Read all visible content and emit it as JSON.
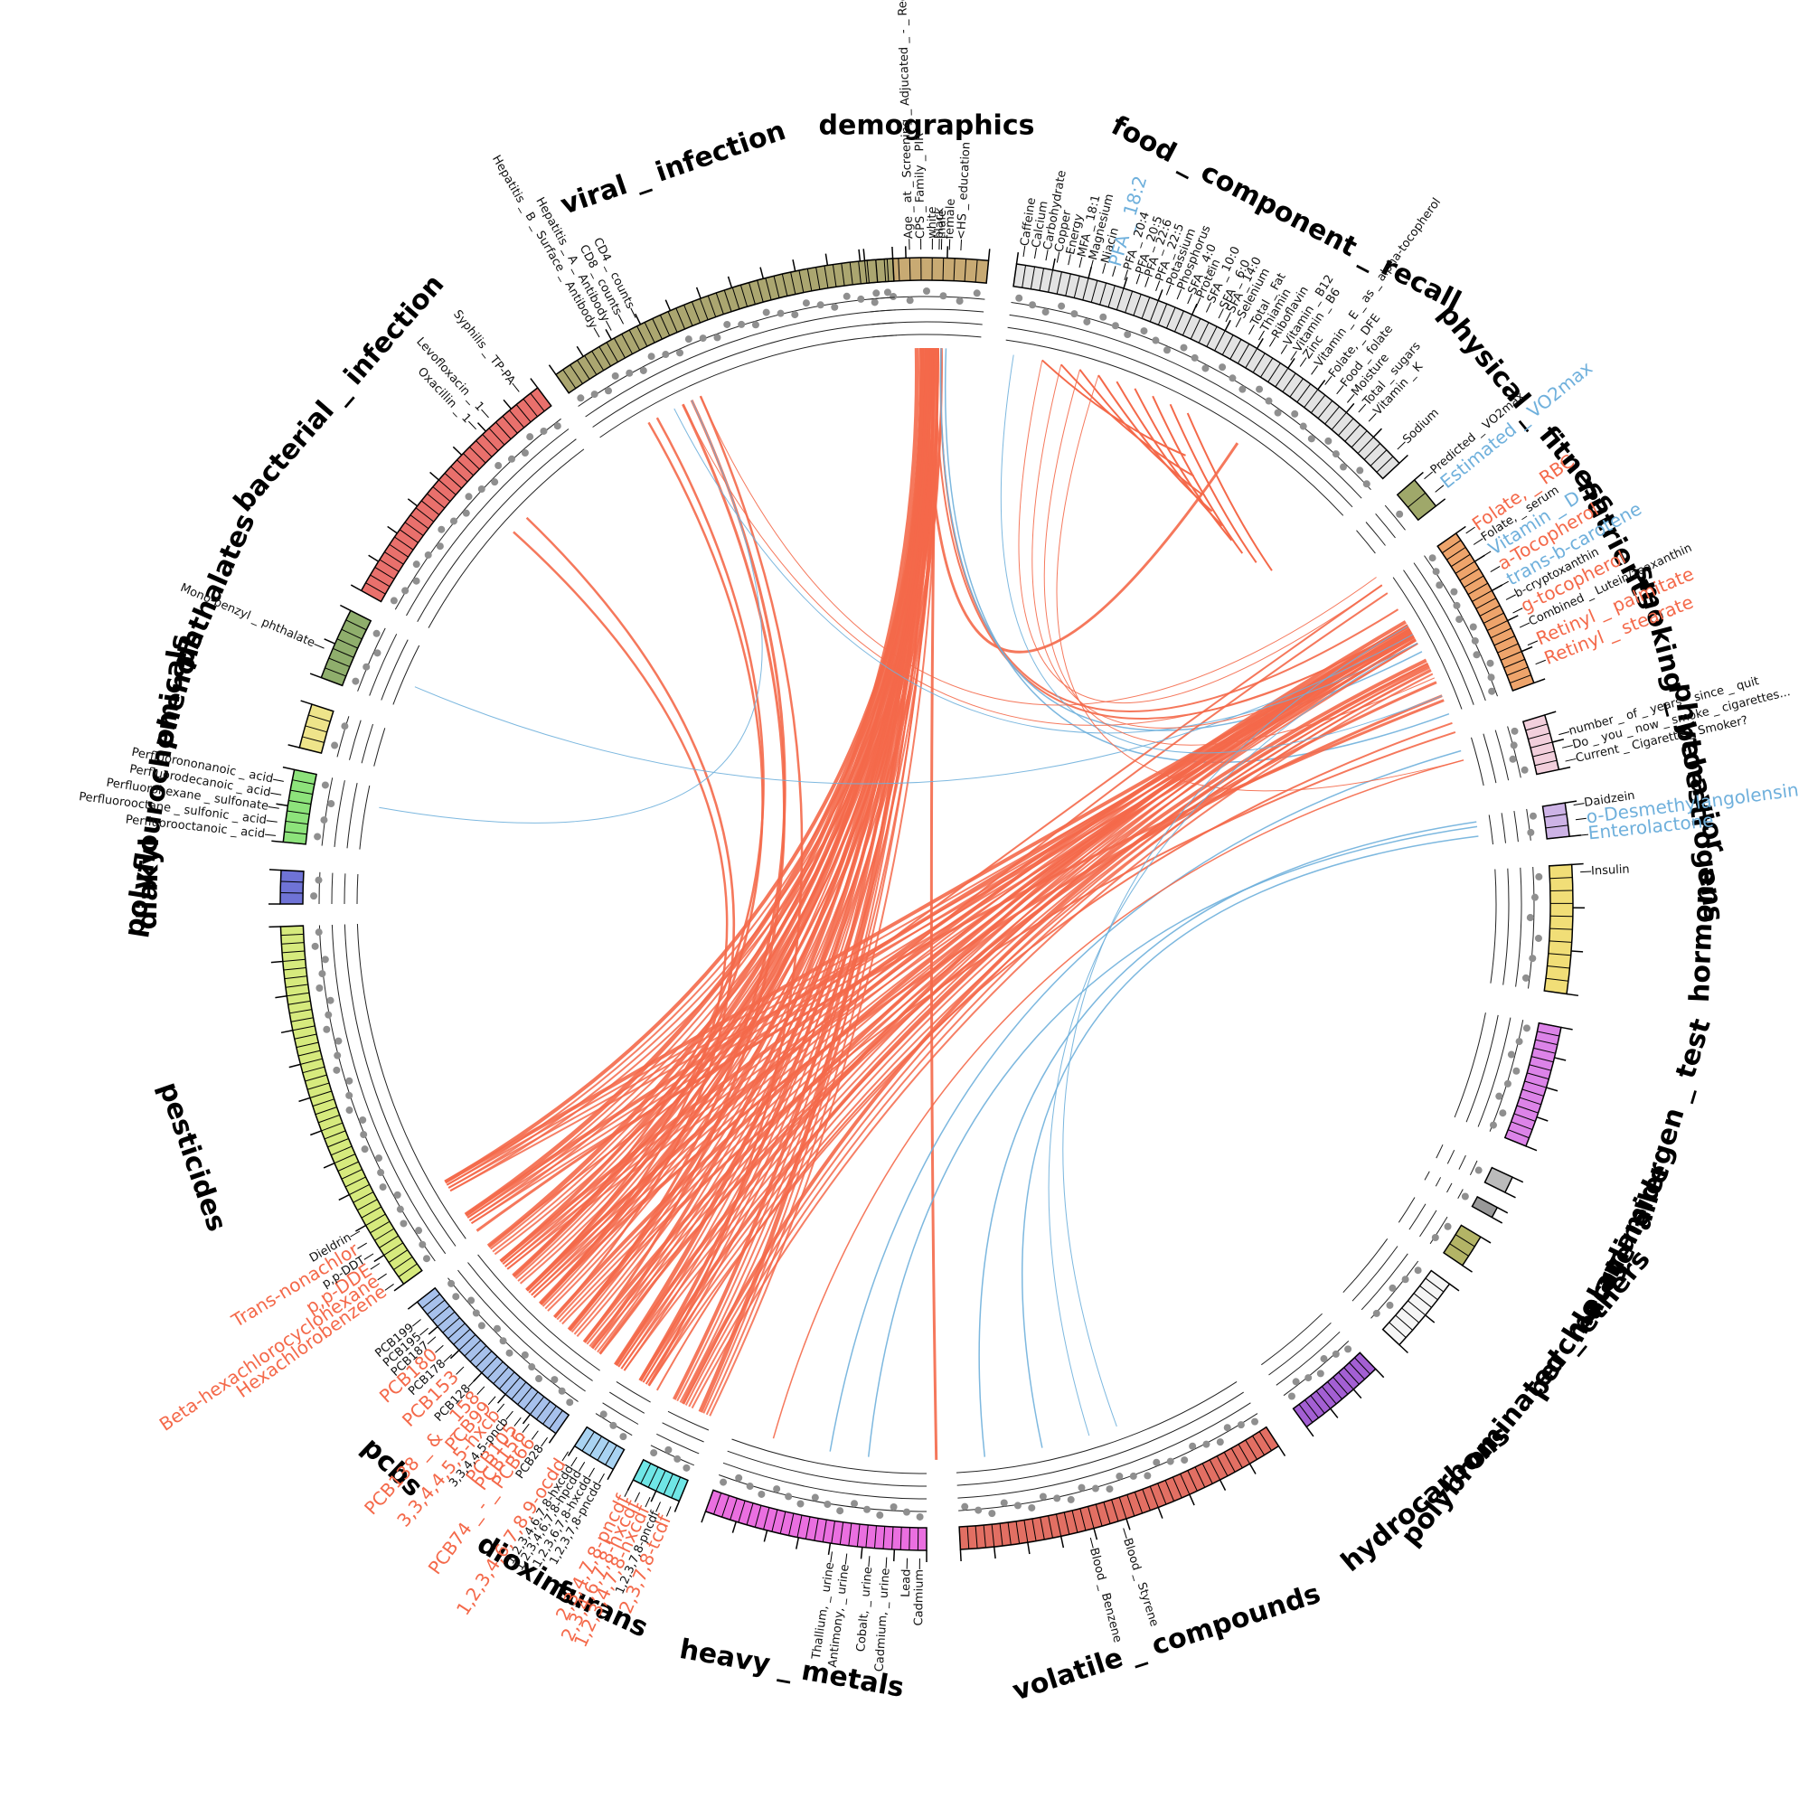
{
  "colors": {
    "positive": "#f4694a",
    "negative": "#6fb0dc",
    "point": "#8f8f8f",
    "text_black": "#111111"
  },
  "categories": [
    {
      "name": "demographics",
      "color": "#c8aa73",
      "start": -5.5,
      "end": 5.5,
      "ticks": 11
    },
    {
      "name": "food _ component _ recall",
      "color": "#e3e3e3",
      "start": 8,
      "end": 47,
      "ticks": 48
    },
    {
      "name": "physical _ fitness",
      "color": "#9fa86a",
      "start": 49,
      "end": 52,
      "ticks": 2
    },
    {
      "name": "nutrients",
      "color": "#eea46b",
      "start": 55,
      "end": 70,
      "ticks": 20
    },
    {
      "name": "smoking _ behavior",
      "color": "#f2cfdc",
      "start": 73,
      "end": 78,
      "ticks": 6
    },
    {
      "name": "phytoestrogens",
      "color": "#cdb3e6",
      "start": 81,
      "end": 84,
      "ticks": 3
    },
    {
      "name": "hormone",
      "color": "#f1de77",
      "start": 86.5,
      "end": 98,
      "ticks": 10
    },
    {
      "name": "allergen _ test",
      "color": "#dc83e8",
      "start": 101,
      "end": 112,
      "ticks": 14
    },
    {
      "name": "acrylamide",
      "color": "#bbbbbb",
      "start": 115,
      "end": 116.5,
      "ticks": 1
    },
    {
      "name": "melamine",
      "color": "#999999",
      "start": 118,
      "end": 119,
      "ticks": 1
    },
    {
      "name": "perchlorate",
      "color": "#b3b466",
      "start": 121,
      "end": 124,
      "ticks": 3
    },
    {
      "name": "polybrominated _ ethers",
      "color": "#f5f5f5",
      "start": 126,
      "end": 133,
      "ticks": 8
    },
    {
      "name": "hydrocarbons",
      "color": "#a35fd3",
      "start": 136,
      "end": 144,
      "ticks": 12
    },
    {
      "name": "volatile _ compounds",
      "color": "#e26f63",
      "start": 147,
      "end": 177,
      "ticks": 40
    },
    {
      "name": "heavy _ metals",
      "color": "#ea6fe0",
      "start": 180,
      "end": 200,
      "ticks": 26
    },
    {
      "name": "furans",
      "color": "#6fe6e6",
      "start": 202.5,
      "end": 207,
      "ticks": 6
    },
    {
      "name": "dioxins",
      "color": "#a9d3f2",
      "start": 209,
      "end": 213,
      "ticks": 5
    },
    {
      "name": "pcbs",
      "color": "#a7c1ec",
      "start": 215,
      "end": 232,
      "ticks": 24
    },
    {
      "name": "pesticides",
      "color": "#d6ea7d",
      "start": 234,
      "end": 268,
      "ticks": 44
    },
    {
      "name": "diakyl",
      "color": "#6f73d6",
      "start": 270,
      "end": 273,
      "ticks": 3
    },
    {
      "name": "polyflourochemicals",
      "color": "#8de37b",
      "start": 275.5,
      "end": 282,
      "ticks": 7
    },
    {
      "name": "phenols",
      "color": "#eee48a",
      "start": 284,
      "end": 288,
      "ticks": 4
    },
    {
      "name": "phthalates",
      "color": "#8fae6c",
      "start": 290.5,
      "end": 297,
      "ticks": 7
    },
    {
      "name": "bacterial _ infection",
      "color": "#e9706c",
      "start": 299,
      "end": 323,
      "ticks": 30
    },
    {
      "name": "viral _ infection",
      "color": "#aba670",
      "start": 325,
      "end": 357,
      "ticks": 42
    }
  ],
  "variable_labels": [
    {
      "text": "Age _ at _ Screening _ Adjucated _ - _ Recode",
      "angle": -1.5,
      "tone": "plain"
    },
    {
      "text": "CPS _ Family _ PIR",
      "angle": -0.5,
      "tone": "plain"
    },
    {
      "text": "white",
      "angle": 0.5,
      "tone": "plain"
    },
    {
      "text": "male",
      "angle": 1.3,
      "tone": "plain"
    },
    {
      "text": "black",
      "angle": 1.1,
      "tone": "plain"
    },
    {
      "text": "female",
      "angle": 2.0,
      "tone": "plain"
    },
    {
      "text": "<HS _ education",
      "angle": 3.0,
      "tone": "plain"
    },
    {
      "text": "Caffeine",
      "angle": 8.5,
      "tone": "plain"
    },
    {
      "text": "Calcium",
      "angle": 9.5,
      "tone": "plain"
    },
    {
      "text": "Carbohydrate",
      "angle": 10.5,
      "tone": "plain"
    },
    {
      "text": "Copper",
      "angle": 11.5,
      "tone": "plain"
    },
    {
      "text": "Energy",
      "angle": 12.5,
      "tone": "plain"
    },
    {
      "text": "MFA _ 18:1",
      "angle": 13.5,
      "tone": "plain"
    },
    {
      "text": "Magnesium",
      "angle": 14.5,
      "tone": "plain"
    },
    {
      "text": "Niacin",
      "angle": 15.6,
      "tone": "plain"
    },
    {
      "text": "PFA _ 18:2",
      "angle": 16.5,
      "tone": "neg-big"
    },
    {
      "text": "PFA _ 20:4",
      "angle": 17.6,
      "tone": "plain"
    },
    {
      "text": "PFA _ 20:5",
      "angle": 18.7,
      "tone": "plain"
    },
    {
      "text": "PFA _ 22:6",
      "angle": 19.5,
      "tone": "plain"
    },
    {
      "text": "PFA _ 22:5",
      "angle": 20.5,
      "tone": "plain"
    },
    {
      "text": "Potassium",
      "angle": 21.5,
      "tone": "plain"
    },
    {
      "text": "Phosphorus",
      "angle": 22.5,
      "tone": "plain"
    },
    {
      "text": "SFA _ 4:0",
      "angle": 23.5,
      "tone": "plain"
    },
    {
      "text": "Protein",
      "angle": 24.3,
      "tone": "plain"
    },
    {
      "text": "SFA _ 10:0",
      "angle": 25.3,
      "tone": "plain"
    },
    {
      "text": "SFA _ 6:0",
      "angle": 26.5,
      "tone": "plain"
    },
    {
      "text": "SFA _ 14:0",
      "angle": 27.2,
      "tone": "plain"
    },
    {
      "text": "Selenium",
      "angle": 28.2,
      "tone": "plain"
    },
    {
      "text": "Total _ Fat",
      "angle": 29.5,
      "tone": "plain"
    },
    {
      "text": "Thiamin",
      "angle": 30.5,
      "tone": "plain"
    },
    {
      "text": "Riboflavin",
      "angle": 31.6,
      "tone": "plain"
    },
    {
      "text": "Vitamin _ B12",
      "angle": 32.8,
      "tone": "plain"
    },
    {
      "text": "Vitamin _ B6",
      "angle": 33.8,
      "tone": "plain"
    },
    {
      "text": "Zinc",
      "angle": 34.8,
      "tone": "plain"
    },
    {
      "text": "Vitamin _ E _ as _ alpha-tocopherol",
      "angle": 36,
      "tone": "plain"
    },
    {
      "text": "Folate, _ DFE",
      "angle": 37.5,
      "tone": "plain"
    },
    {
      "text": "Food _ folate",
      "angle": 38.8,
      "tone": "plain"
    },
    {
      "text": "Moisture",
      "angle": 40,
      "tone": "plain"
    },
    {
      "text": "Total _ sugars",
      "angle": 41.3,
      "tone": "plain"
    },
    {
      "text": "Vitamin _ K",
      "angle": 42.5,
      "tone": "plain"
    },
    {
      "text": "Sodium",
      "angle": 46,
      "tone": "plain"
    },
    {
      "text": "Predicted _ VO2max",
      "angle": 49.5,
      "tone": "plain"
    },
    {
      "text": "Estimated _ VO2max",
      "angle": 51,
      "tone": "neg-big"
    },
    {
      "text": "Folate, _ RBC",
      "angle": 55.5,
      "tone": "pos-big"
    },
    {
      "text": "Folate, _ serum",
      "angle": 56.7,
      "tone": "plain"
    },
    {
      "text": "Vitamin _ D",
      "angle": 58,
      "tone": "neg-big"
    },
    {
      "text": "a-Tocopherol",
      "angle": 59.5,
      "tone": "pos-big"
    },
    {
      "text": "trans-b-carotene",
      "angle": 61,
      "tone": "neg-big"
    },
    {
      "text": "b-cryptoxanthin",
      "angle": 62.3,
      "tone": "plain"
    },
    {
      "text": "g-tocopherol",
      "angle": 63.6,
      "tone": "pos-big"
    },
    {
      "text": "Combined _ Lutein/zeaxanthin",
      "angle": 65,
      "tone": "plain"
    },
    {
      "text": "Retinyl _ palmitate",
      "angle": 66.7,
      "tone": "pos-big"
    },
    {
      "text": "Retinyl _ stearate",
      "angle": 68.5,
      "tone": "pos-big"
    },
    {
      "text": "number _ of _ years _ since _ quit",
      "angle": 75,
      "tone": "plain"
    },
    {
      "text": "Do _ you _ now _ smoke _ cigarettes...",
      "angle": 76.2,
      "tone": "plain"
    },
    {
      "text": "Current _ Cigarette _ Smoker?",
      "angle": 77.4,
      "tone": "plain"
    },
    {
      "text": "Daidzein",
      "angle": 81.3,
      "tone": "plain"
    },
    {
      "text": "o-Desmethylangolensin",
      "angle": 82.6,
      "tone": "neg-big"
    },
    {
      "text": "Enterolactone",
      "angle": 84.0,
      "tone": "neg-big"
    },
    {
      "text": "Insulin",
      "angle": 87.2,
      "tone": "plain"
    },
    {
      "text": "Blood _ Styrene",
      "angle": 162.5,
      "tone": "plain"
    },
    {
      "text": "Blood _ Benzene",
      "angle": 165.5,
      "tone": "plain"
    },
    {
      "text": "Cadmium",
      "angle": 180.6,
      "tone": "plain"
    },
    {
      "text": "Lead",
      "angle": 181.7,
      "tone": "plain"
    },
    {
      "text": "Cadmium, _ urine",
      "angle": 183.5,
      "tone": "plain"
    },
    {
      "text": "Cobalt, _ urine",
      "angle": 185,
      "tone": "plain"
    },
    {
      "text": "Antimony, _ urine",
      "angle": 187,
      "tone": "plain"
    },
    {
      "text": "Thallium, _ urine",
      "angle": 188.3,
      "tone": "plain"
    },
    {
      "text": "2,3,7,8-tcdf",
      "angle": 203,
      "tone": "pos-big"
    },
    {
      "text": "1,2,3,7,8-pncdf",
      "angle": 204,
      "tone": "plain"
    },
    {
      "text": "1,2,3,4,7,8-hxcdf",
      "angle": 205,
      "tone": "pos-big"
    },
    {
      "text": "2,3,4,6,7,8-hxcdf",
      "angle": 206,
      "tone": "pos-big"
    },
    {
      "text": "2,3,4,7,8-pncdf",
      "angle": 207,
      "tone": "pos-big"
    },
    {
      "text": "1,2,3,7,8-pncdd",
      "angle": 209.5,
      "tone": "plain"
    },
    {
      "text": "1,2,3,6,7,8-hxcdd",
      "angle": 210.5,
      "tone": "plain"
    },
    {
      "text": "1,2,3,4,6,7,8-hpcdd",
      "angle": 211.5,
      "tone": "plain"
    },
    {
      "text": "1,2,3,4,6,7,8-hxcdd",
      "angle": 212.3,
      "tone": "plain"
    },
    {
      "text": "1,2,3,4,6,7,8,9-ocdd",
      "angle": 213.2,
      "tone": "pos-big"
    },
    {
      "text": "PCB28",
      "angle": 215.4,
      "tone": "plain"
    },
    {
      "text": "PCB74 _ - _ PCB66",
      "angle": 216.4,
      "tone": "pos-big"
    },
    {
      "text": "PCB156",
      "angle": 217.4,
      "tone": "pos-big"
    },
    {
      "text": "PCB105",
      "angle": 218.3,
      "tone": "pos-big"
    },
    {
      "text": "3,3,4,4,5-pncb",
      "angle": 219.2,
      "tone": "plain"
    },
    {
      "text": "3,3,4,4,5,5-hxcb",
      "angle": 220.2,
      "tone": "pos-big"
    },
    {
      "text": "PCB99",
      "angle": 221.2,
      "tone": "pos-big"
    },
    {
      "text": "PCB138 _ & _ 158",
      "angle": 222.5,
      "tone": "pos-big"
    },
    {
      "text": "PCB128",
      "angle": 223.5,
      "tone": "plain"
    },
    {
      "text": "PCB153",
      "angle": 225,
      "tone": "pos-big"
    },
    {
      "text": "PCB178",
      "angle": 226.5,
      "tone": "plain"
    },
    {
      "text": "PCB180",
      "angle": 227.6,
      "tone": "pos-big"
    },
    {
      "text": "PCB187",
      "angle": 228.6,
      "tone": "plain"
    },
    {
      "text": "PCB195",
      "angle": 229.6,
      "tone": "plain"
    },
    {
      "text": "PCB199",
      "angle": 230.6,
      "tone": "plain"
    },
    {
      "text": "Hexachlorobenzene",
      "angle": 234.5,
      "tone": "pos-big"
    },
    {
      "text": "Beta-hexachlorocyclohexane",
      "angle": 235.6,
      "tone": "pos-big"
    },
    {
      "text": "p,p-DDE",
      "angle": 236.7,
      "tone": "pos-big"
    },
    {
      "text": "p,p-DDT",
      "angle": 237.7,
      "tone": "plain"
    },
    {
      "text": "Trans-nonachlor",
      "angle": 238.8,
      "tone": "pos-big"
    },
    {
      "text": "Dieldrin",
      "angle": 240.0,
      "tone": "plain"
    },
    {
      "text": "Perfluorooctanoic _ acid",
      "angle": 276,
      "tone": "plain"
    },
    {
      "text": "Perfluorooctane _ sulfonic _ acid",
      "angle": 277.2,
      "tone": "plain"
    },
    {
      "text": "Perfluorohexane _ sulfonate",
      "angle": 278.4,
      "tone": "plain"
    },
    {
      "text": "Perfluorodecanoic _ acid",
      "angle": 279.6,
      "tone": "plain"
    },
    {
      "text": "Perfluorononanoic _ acid",
      "angle": 280.8,
      "tone": "plain"
    },
    {
      "text": "Mono-benzyl _ phthalate",
      "angle": 293,
      "tone": "plain"
    },
    {
      "text": "Oxacillin _ 1",
      "angle": 316.5,
      "tone": "plain"
    },
    {
      "text": "Levofloxacin _ 1",
      "angle": 318,
      "tone": "plain"
    },
    {
      "text": "Syphilis _ TP-PA",
      "angle": 321.5,
      "tone": "plain"
    },
    {
      "text": "Hepatitis _ B _ Surface _ Antibody",
      "angle": 330,
      "tone": "plain"
    },
    {
      "text": "Hepatitis _ A _ Antibody",
      "angle": 331.2,
      "tone": "plain"
    },
    {
      "text": "CD8 _ counts",
      "angle": 332.4,
      "tone": "plain"
    },
    {
      "text": "CD4 _ counts",
      "angle": 333.6,
      "tone": "plain"
    }
  ],
  "links": [
    {
      "from": 0,
      "to": 214,
      "sign": "pos",
      "width": 5
    },
    {
      "from": 0.5,
      "to": 220,
      "sign": "pos",
      "width": 5
    },
    {
      "from": -0.5,
      "to": 224,
      "sign": "pos",
      "width": 5
    },
    {
      "from": 0,
      "to": 228,
      "sign": "pos",
      "width": 5
    },
    {
      "from": -1,
      "to": 232,
      "sign": "pos",
      "width": 5
    },
    {
      "from": 0,
      "to": 236,
      "sign": "pos",
      "width": 5
    },
    {
      "from": 0.5,
      "to": 240,
      "sign": "pos",
      "width": 4
    },
    {
      "from": 0,
      "to": 204,
      "sign": "pos",
      "width": 5
    },
    {
      "from": -0.5,
      "to": 207,
      "sign": "pos",
      "width": 4
    },
    {
      "from": 0,
      "to": 211,
      "sign": "pos",
      "width": 4
    },
    {
      "from": 0,
      "to": 217,
      "sign": "pos",
      "width": 4
    },
    {
      "from": 0.5,
      "to": 226,
      "sign": "pos",
      "width": 4
    },
    {
      "from": -0.5,
      "to": 230,
      "sign": "pos",
      "width": 4
    },
    {
      "from": 1,
      "to": 179,
      "sign": "pos",
      "width": 3
    },
    {
      "from": 0,
      "to": 34,
      "sign": "pos",
      "width": 3
    },
    {
      "from": 1,
      "to": 60,
      "sign": "pos",
      "width": 2
    },
    {
      "from": 1.5,
      "to": 58,
      "sign": "pos",
      "width": 2
    },
    {
      "from": 1.5,
      "to": 63,
      "sign": "neg",
      "width": 1.5
    },
    {
      "from": 2,
      "to": 70,
      "sign": "neg",
      "width": 1.5
    },
    {
      "from": 60,
      "to": 214,
      "sign": "pos",
      "width": 4
    },
    {
      "from": 60.5,
      "to": 218,
      "sign": "pos",
      "width": 4
    },
    {
      "from": 61,
      "to": 222,
      "sign": "pos",
      "width": 4
    },
    {
      "from": 59.5,
      "to": 226,
      "sign": "pos",
      "width": 4
    },
    {
      "from": 60,
      "to": 230,
      "sign": "pos",
      "width": 4
    },
    {
      "from": 61,
      "to": 236,
      "sign": "pos",
      "width": 4
    },
    {
      "from": 60.5,
      "to": 240,
      "sign": "pos",
      "width": 4
    },
    {
      "from": 64,
      "to": 211,
      "sign": "pos",
      "width": 4
    },
    {
      "from": 64.5,
      "to": 206,
      "sign": "pos",
      "width": 4
    },
    {
      "from": 66.5,
      "to": 216,
      "sign": "pos",
      "width": 3
    },
    {
      "from": 68,
      "to": 224,
      "sign": "pos",
      "width": 3
    },
    {
      "from": 68.5,
      "to": 234,
      "sign": "pos",
      "width": 3
    },
    {
      "from": 71,
      "to": 209,
      "sign": "pos",
      "width": 2
    },
    {
      "from": 72,
      "to": 220,
      "sign": "pos",
      "width": 2
    },
    {
      "from": 56,
      "to": 226,
      "sign": "pos",
      "width": 2
    },
    {
      "from": 55,
      "to": 232,
      "sign": "pos",
      "width": 2
    },
    {
      "from": 81.5,
      "to": 174,
      "sign": "neg",
      "width": 1.5
    },
    {
      "from": 83,
      "to": 168,
      "sign": "neg",
      "width": 1.5
    },
    {
      "from": 82,
      "to": 186,
      "sign": "neg",
      "width": 1.5
    },
    {
      "from": 74,
      "to": 190,
      "sign": "neg",
      "width": 1.5
    },
    {
      "from": 75,
      "to": 196,
      "sign": "pos",
      "width": 1.5
    },
    {
      "from": 218,
      "to": 334,
      "sign": "pos",
      "width": 3
    },
    {
      "from": 220,
      "to": 335,
      "sign": "pos",
      "width": 3
    },
    {
      "from": 224,
      "to": 312,
      "sign": "pos",
      "width": 2.5
    },
    {
      "from": 222,
      "to": 314,
      "sign": "pos",
      "width": 2.5
    },
    {
      "from": 226,
      "to": 330,
      "sign": "pos",
      "width": 2.5
    },
    {
      "from": 228,
      "to": 331,
      "sign": "pos",
      "width": 2.5
    },
    {
      "from": 210,
      "to": 336,
      "sign": "pos",
      "width": 2.5
    },
    {
      "from": 334,
      "to": 60,
      "sign": "pos",
      "width": 1
    },
    {
      "from": 333,
      "to": 62,
      "sign": "neg",
      "width": 1
    },
    {
      "from": 293,
      "to": 61,
      "sign": "neg",
      "width": 1
    },
    {
      "from": 280,
      "to": 335,
      "sign": "neg",
      "width": 1
    },
    {
      "from": 12,
      "to": 55,
      "sign": "pos",
      "width": 1
    },
    {
      "from": 14,
      "to": 62,
      "sign": "pos",
      "width": 1
    },
    {
      "from": 16,
      "to": 66,
      "sign": "pos",
      "width": 1
    },
    {
      "from": 9,
      "to": 68,
      "sign": "neg",
      "width": 1
    },
    {
      "from": 18,
      "to": 75,
      "sign": "pos",
      "width": 1
    },
    {
      "from": 336,
      "to": 54,
      "sign": "pos",
      "width": 1
    },
    {
      "from": 60,
      "to": 160,
      "sign": "neg",
      "width": 1
    },
    {
      "from": 62,
      "to": 163,
      "sign": "neg",
      "width": 1
    }
  ],
  "food_fan": [
    {
      "angle": 12,
      "len": 140
    },
    {
      "angle": 14,
      "len": 190
    },
    {
      "angle": 16,
      "len": 230
    },
    {
      "angle": 18,
      "len": 260
    },
    {
      "angle": 20,
      "len": 280
    },
    {
      "angle": 22,
      "len": 300
    },
    {
      "angle": 24,
      "len": 310
    },
    {
      "angle": 26,
      "len": 300
    },
    {
      "angle": 28,
      "len": 280
    }
  ]
}
